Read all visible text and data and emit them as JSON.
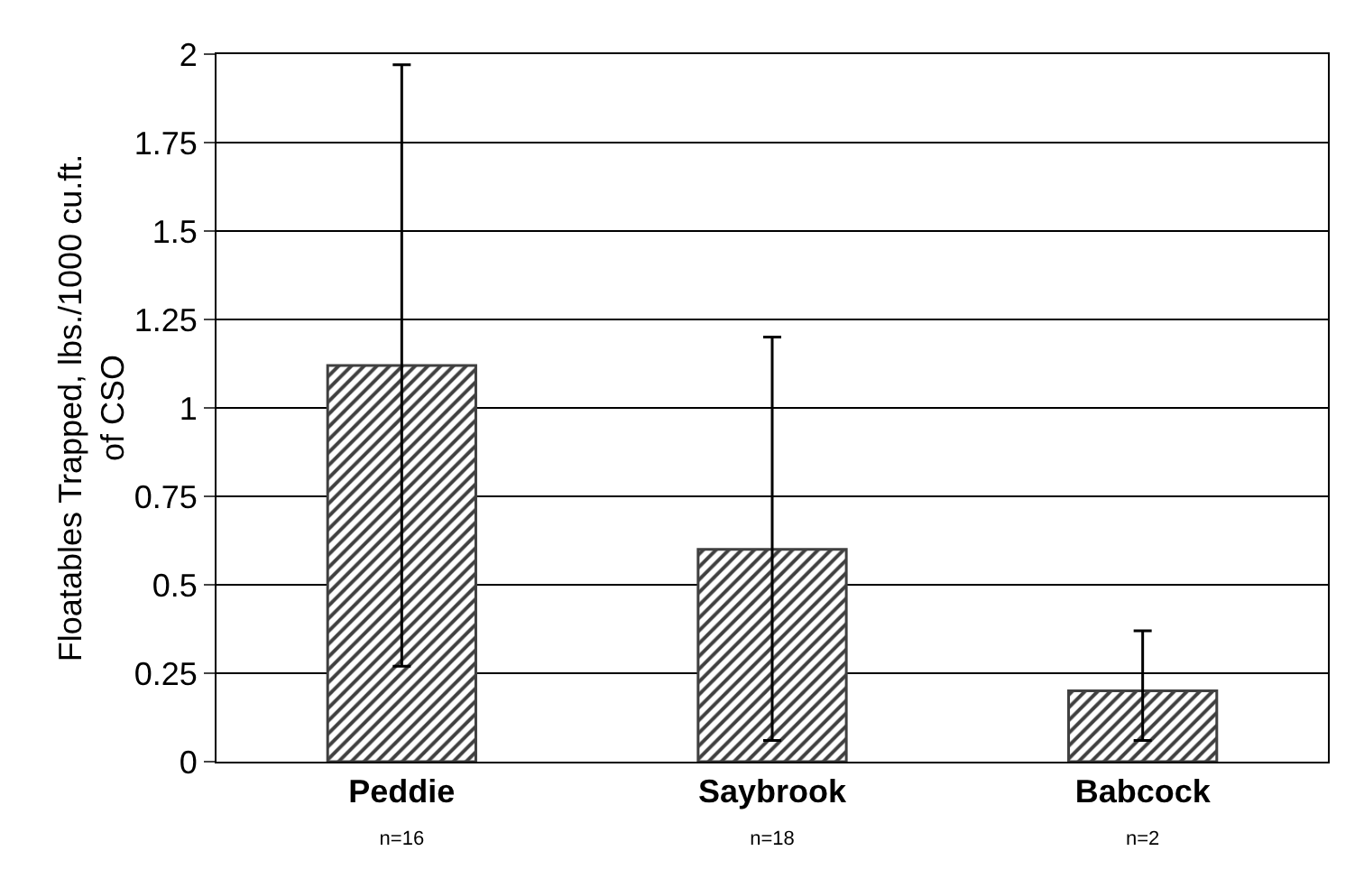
{
  "chart_data": {
    "type": "bar",
    "ylabel": "Floatables Trapped, lbs./1000 cu.ft. of CSO",
    "categories": [
      "Peddie\nn=16",
      "Saybrook\nn=18",
      "Babcock\nn=2"
    ],
    "values": [
      1.12,
      0.6,
      0.2
    ],
    "errors": [
      [
        0.27,
        1.97
      ],
      [
        0.06,
        1.2
      ],
      [
        0.06,
        0.37
      ]
    ],
    "color": "#404040",
    "ylim": [
      0,
      2
    ],
    "yticks": [
      0,
      0.25,
      0.5,
      0.75,
      1,
      1.25,
      1.5,
      1.75,
      2
    ],
    "grid": "y"
  }
}
